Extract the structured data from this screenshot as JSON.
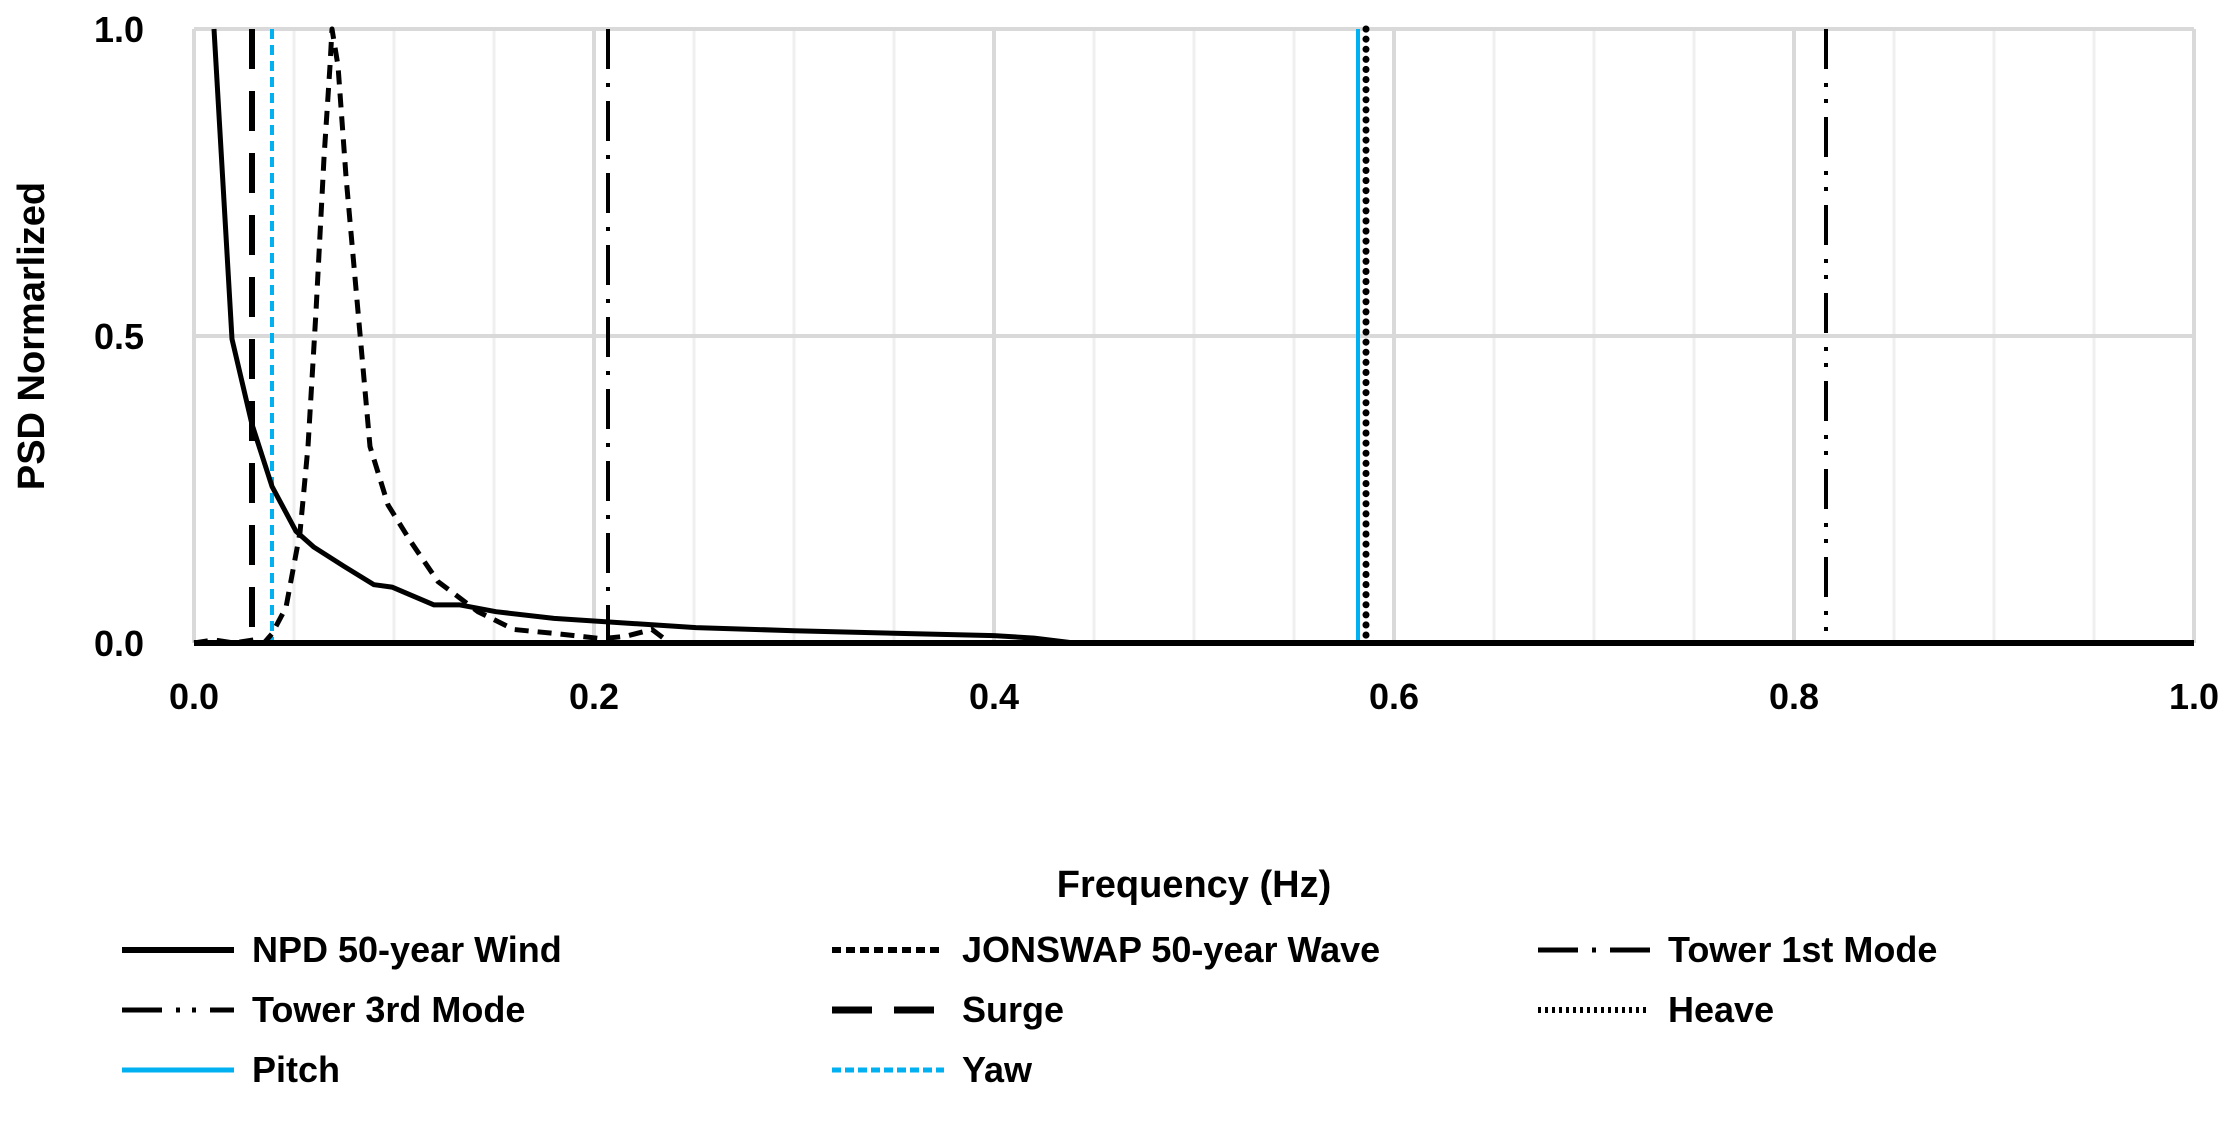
{
  "chart_data": {
    "type": "line",
    "title": "",
    "xlabel": "Frequency (Hz)",
    "ylabel": "PSD Normarlized",
    "xlim": [
      0,
      1
    ],
    "ylim": [
      0,
      1
    ],
    "x_ticks": [
      "0.0",
      "0.2",
      "0.4",
      "0.6",
      "0.8",
      "1.0"
    ],
    "x_tick_values": [
      0,
      0.2,
      0.4,
      0.6,
      0.8,
      1.0
    ],
    "y_ticks": [
      "0.0",
      "0.5",
      "1.0"
    ],
    "y_tick_values": [
      0,
      0.5,
      1.0
    ],
    "grid": true,
    "minor_grid_step_x": 0.05,
    "legend_placement": "bottom",
    "series": [
      {
        "name": "NPD 50-year Wind",
        "style": "solid",
        "color": "#000000",
        "x": [
          0.01,
          0.019,
          0.029,
          0.039,
          0.051,
          0.06,
          0.075,
          0.09,
          0.099,
          0.12,
          0.133,
          0.151,
          0.18,
          0.251,
          0.3,
          0.35,
          0.4,
          0.42,
          0.44,
          0.5,
          0.6,
          0.7,
          0.8,
          0.9,
          1.0
        ],
        "y": [
          1.0,
          0.495,
          0.356,
          0.255,
          0.182,
          0.156,
          0.125,
          0.095,
          0.091,
          0.062,
          0.062,
          0.051,
          0.04,
          0.025,
          0.02,
          0.016,
          0.012,
          0.008,
          0.0,
          0.0,
          0.0,
          0.0,
          0.0,
          0.0,
          0.0
        ]
      },
      {
        "name": "JONSWAP 50-year Wave",
        "style": "dashed",
        "color": "#000000",
        "x": [
          0.0,
          0.01,
          0.02,
          0.03,
          0.035,
          0.039,
          0.046,
          0.053,
          0.057,
          0.061,
          0.065,
          0.068,
          0.069,
          0.072,
          0.076,
          0.082,
          0.088,
          0.097,
          0.108,
          0.122,
          0.142,
          0.16,
          0.182,
          0.204,
          0.216,
          0.229,
          0.238,
          0.3,
          0.5,
          0.7,
          1.0
        ],
        "y": [
          0.0,
          0.005,
          0.0,
          0.005,
          0.0,
          0.015,
          0.058,
          0.18,
          0.32,
          0.54,
          0.79,
          0.94,
          1.0,
          0.94,
          0.76,
          0.54,
          0.32,
          0.225,
          0.167,
          0.1,
          0.051,
          0.022,
          0.015,
          0.007,
          0.011,
          0.022,
          0.0,
          0.0,
          0.0,
          0.0,
          0.0
        ]
      },
      {
        "name": "Tower 1st Mode",
        "style": "dash-dot",
        "color": "#000000",
        "vertical_at": 0.207
      },
      {
        "name": "Tower 3rd Mode",
        "style": "dash-dot-dot",
        "color": "#000000",
        "vertical_at": 0.816
      },
      {
        "name": "Surge",
        "style": "long-dash",
        "color": "#000000",
        "vertical_at": 0.029
      },
      {
        "name": "Heave",
        "style": "dotted",
        "color": "#000000",
        "vertical_at": 0.586
      },
      {
        "name": "Pitch",
        "style": "solid",
        "color": "#00B0F0",
        "vertical_at": 0.582
      },
      {
        "name": "Yaw",
        "style": "dotted",
        "color": "#00B0F0",
        "vertical_at": 0.039
      }
    ]
  }
}
